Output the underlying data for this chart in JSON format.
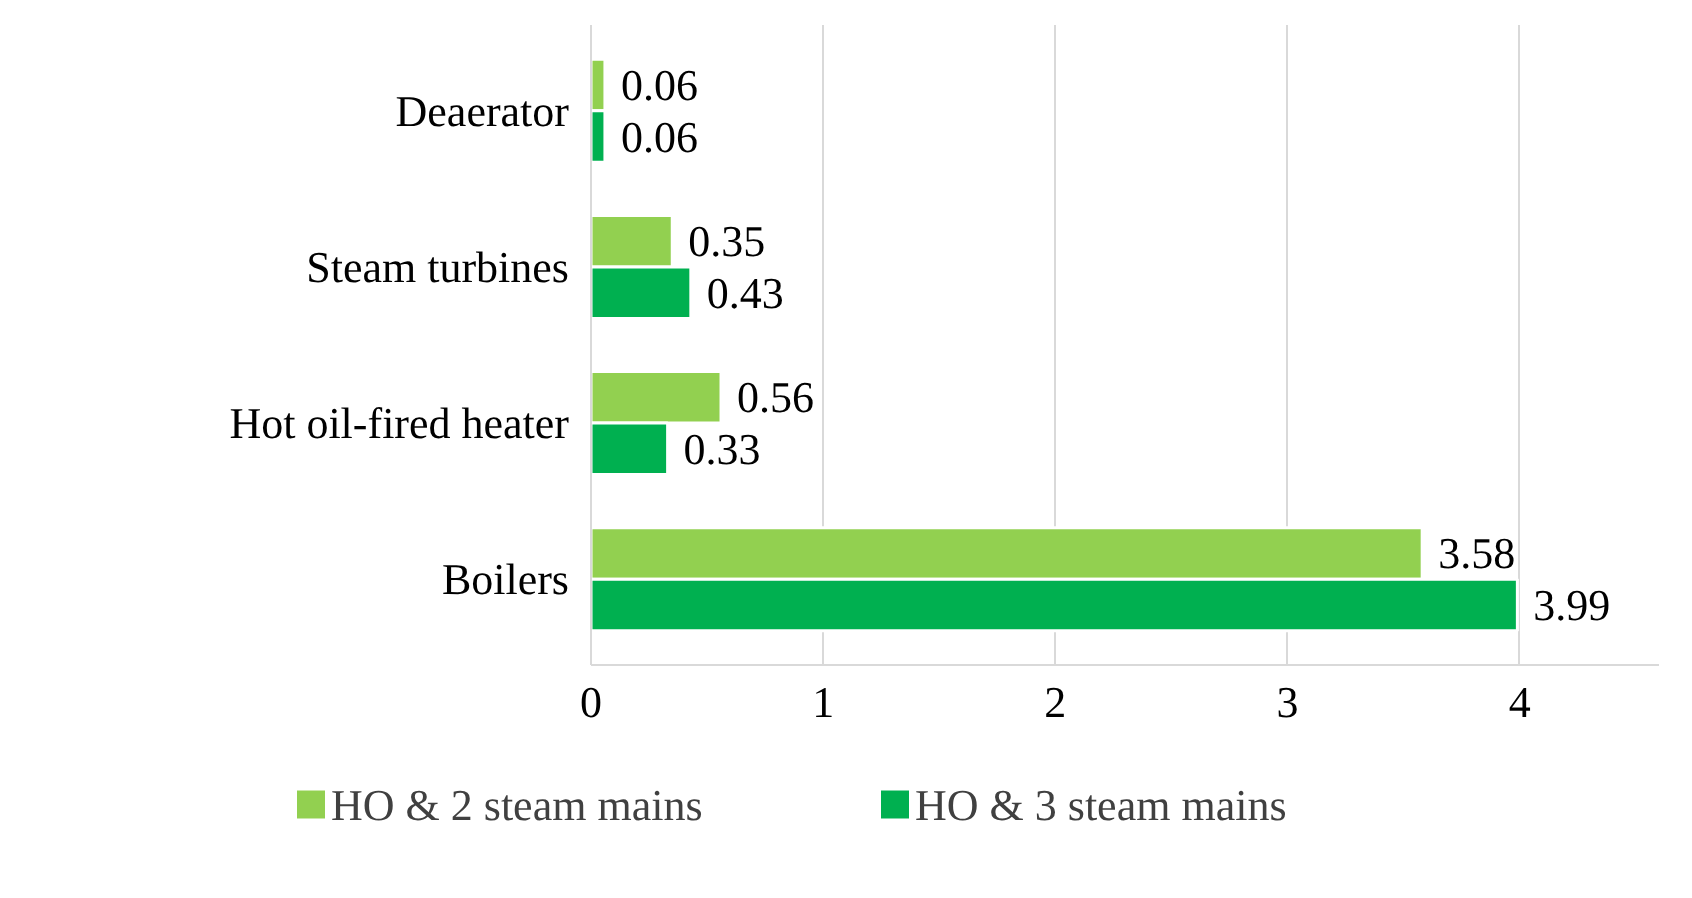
{
  "chart_data": {
    "type": "bar",
    "orientation": "horizontal",
    "categories": [
      "Deaerator",
      "Steam turbines",
      "Hot oil-fired heater",
      "Boilers"
    ],
    "series": [
      {
        "name": "HO & 2 steam mains",
        "color": "#92d050",
        "values": [
          0.06,
          0.35,
          0.56,
          3.58
        ]
      },
      {
        "name": "HO & 3 steam mains",
        "color": "#00b050",
        "values": [
          0.06,
          0.43,
          0.33,
          3.99
        ]
      }
    ],
    "xlim": [
      0,
      4.6
    ],
    "xticks": [
      0,
      1,
      2,
      3,
      4
    ],
    "grid": "x",
    "legend": "bottom",
    "data_labels": true
  }
}
